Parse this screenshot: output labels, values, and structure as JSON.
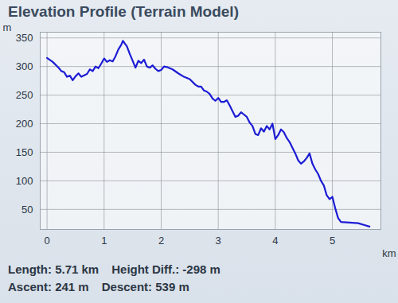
{
  "chart_data": {
    "type": "line",
    "title": "Elevation Profile (Terrain Model)",
    "x_label": "km",
    "y_label": "m",
    "color": "#1c1cd4",
    "grid": true,
    "xlim": [
      -0.12,
      5.85
    ],
    "ylim": [
      15,
      360
    ],
    "xticks": [
      0,
      1,
      2,
      3,
      4,
      5
    ],
    "yticks": [
      50,
      100,
      150,
      200,
      250,
      300,
      350
    ],
    "x": [
      0,
      0.1,
      0.2,
      0.25,
      0.3,
      0.35,
      0.4,
      0.45,
      0.5,
      0.55,
      0.6,
      0.7,
      0.75,
      0.8,
      0.85,
      0.9,
      0.95,
      1.0,
      1.05,
      1.1,
      1.15,
      1.2,
      1.25,
      1.3,
      1.33,
      1.4,
      1.45,
      1.5,
      1.55,
      1.6,
      1.65,
      1.7,
      1.75,
      1.8,
      1.85,
      1.9,
      1.95,
      2.0,
      2.05,
      2.1,
      2.2,
      2.3,
      2.4,
      2.5,
      2.6,
      2.65,
      2.7,
      2.75,
      2.8,
      2.85,
      2.9,
      2.95,
      3.0,
      3.05,
      3.1,
      3.15,
      3.2,
      3.25,
      3.3,
      3.35,
      3.4,
      3.45,
      3.5,
      3.55,
      3.6,
      3.65,
      3.7,
      3.75,
      3.8,
      3.85,
      3.9,
      3.95,
      4.0,
      4.05,
      4.1,
      4.15,
      4.2,
      4.25,
      4.3,
      4.35,
      4.4,
      4.45,
      4.5,
      4.55,
      4.6,
      4.65,
      4.7,
      4.75,
      4.8,
      4.85,
      4.9,
      4.95,
      5.0,
      5.05,
      5.1,
      5.15,
      5.3,
      5.45,
      5.55,
      5.65
    ],
    "values": [
      315,
      308,
      298,
      292,
      290,
      282,
      284,
      276,
      283,
      288,
      282,
      287,
      295,
      292,
      300,
      297,
      305,
      314,
      308,
      311,
      309,
      318,
      330,
      338,
      345,
      335,
      322,
      310,
      298,
      310,
      306,
      312,
      300,
      298,
      302,
      296,
      292,
      294,
      300,
      299,
      295,
      288,
      282,
      278,
      268,
      265,
      265,
      258,
      256,
      252,
      244,
      240,
      245,
      238,
      238,
      241,
      232,
      222,
      212,
      214,
      220,
      216,
      212,
      202,
      196,
      182,
      180,
      192,
      186,
      196,
      190,
      200,
      173,
      180,
      190,
      185,
      175,
      168,
      158,
      148,
      136,
      130,
      134,
      140,
      148,
      130,
      120,
      112,
      100,
      92,
      75,
      68,
      72,
      52,
      35,
      28,
      27,
      26,
      23,
      20
    ],
    "annotations": [
      [
        "Length: 5.71 km",
        "Height Diff.: -298 m"
      ],
      [
        "Ascent: 241 m",
        "Descent: 539 m"
      ]
    ]
  }
}
